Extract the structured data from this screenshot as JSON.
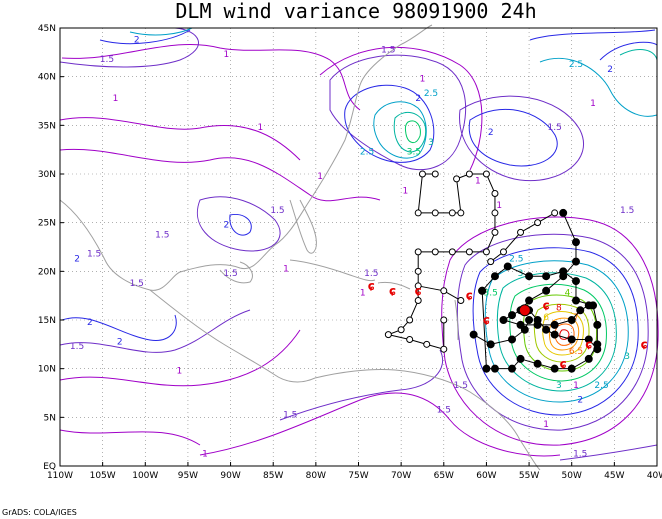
{
  "title": "DLM wind variance 98091900 24h",
  "credit": "GrADS: COLA/IGES",
  "map": {
    "lon_range": [
      -110,
      -40
    ],
    "lat_range": [
      0,
      45
    ],
    "x_ticks": [
      "110W",
      "105W",
      "100W",
      "95W",
      "90W",
      "85W",
      "80W",
      "75W",
      "70W",
      "65W",
      "60W",
      "55W",
      "50W",
      "45W",
      "40W"
    ],
    "y_ticks": [
      "EQ",
      "5N",
      "10N",
      "15N",
      "20N",
      "25N",
      "30N",
      "35N",
      "40N",
      "45N"
    ],
    "gridlines": "dotted",
    "colors": {
      "c1": "#a000c8",
      "c15": "#6e2ec8",
      "c2": "#2828e6",
      "c25": "#00a0c8",
      "c3": "#00b4a0",
      "c35": "#00c864",
      "c4": "#64c800",
      "c6": "#e6c800",
      "c7": "#ff6400",
      "c8": "#e60000",
      "coast": "#a0a0a0",
      "track": "#000000",
      "storm": "#e60000"
    }
  },
  "contour_labels": [
    {
      "text": "2",
      "lon": -101,
      "lat": 43.5,
      "color": "c2"
    },
    {
      "text": "1.5",
      "lon": -104.5,
      "lat": 41.5,
      "color": "c15"
    },
    {
      "text": "1",
      "lon": -90.5,
      "lat": 42,
      "color": "c1"
    },
    {
      "text": "1",
      "lon": -103.5,
      "lat": 37.5,
      "color": "c1"
    },
    {
      "text": "1",
      "lon": -86.5,
      "lat": 34.5,
      "color": "c1"
    },
    {
      "text": "1.5",
      "lon": -71.5,
      "lat": 42.5,
      "color": "c15"
    },
    {
      "text": "1",
      "lon": -67.5,
      "lat": 39.5,
      "color": "c1"
    },
    {
      "text": "2.5",
      "lon": -66.5,
      "lat": 38,
      "color": "c25"
    },
    {
      "text": "2",
      "lon": -68,
      "lat": 37.5,
      "color": "c2"
    },
    {
      "text": "2.5",
      "lon": -74,
      "lat": 32,
      "color": "c25"
    },
    {
      "text": "3.5",
      "lon": -68.5,
      "lat": 32,
      "color": "c35"
    },
    {
      "text": "3",
      "lon": -66.5,
      "lat": 33,
      "color": "c3"
    },
    {
      "text": "2",
      "lon": -59.5,
      "lat": 34,
      "color": "c2"
    },
    {
      "text": "1.5",
      "lon": -52,
      "lat": 34.5,
      "color": "c15"
    },
    {
      "text": "1",
      "lon": -47.5,
      "lat": 37,
      "color": "c1"
    },
    {
      "text": "2.5",
      "lon": -49.5,
      "lat": 41,
      "color": "c25"
    },
    {
      "text": "2",
      "lon": -45.5,
      "lat": 40.5,
      "color": "c2"
    },
    {
      "text": "1",
      "lon": -79.5,
      "lat": 29.5,
      "color": "c1"
    },
    {
      "text": "1",
      "lon": -69.5,
      "lat": 28,
      "color": "c1"
    },
    {
      "text": "1",
      "lon": -61,
      "lat": 29,
      "color": "c1"
    },
    {
      "text": "1",
      "lon": -58.5,
      "lat": 26.5,
      "color": "c1"
    },
    {
      "text": "1.5",
      "lon": -84.5,
      "lat": 26,
      "color": "c15"
    },
    {
      "text": "2",
      "lon": -90.5,
      "lat": 24.5,
      "color": "c2"
    },
    {
      "text": "1.5",
      "lon": -98,
      "lat": 23.5,
      "color": "c15"
    },
    {
      "text": "1.5",
      "lon": -43.5,
      "lat": 26,
      "color": "c15"
    },
    {
      "text": "1.5",
      "lon": -106,
      "lat": 21.5,
      "color": "c15"
    },
    {
      "text": "2",
      "lon": -108,
      "lat": 21,
      "color": "c2"
    },
    {
      "text": "1.5",
      "lon": -101,
      "lat": 18.5,
      "color": "c15"
    },
    {
      "text": "1.5",
      "lon": -90,
      "lat": 19.5,
      "color": "c15"
    },
    {
      "text": "1",
      "lon": -83.5,
      "lat": 20,
      "color": "c1"
    },
    {
      "text": "1.5",
      "lon": -73.5,
      "lat": 19.5,
      "color": "c15"
    },
    {
      "text": "1",
      "lon": -74.5,
      "lat": 17.5,
      "color": "c1"
    },
    {
      "text": "2",
      "lon": -106.5,
      "lat": 14.5,
      "color": "c2"
    },
    {
      "text": "2",
      "lon": -103,
      "lat": 12.5,
      "color": "c2"
    },
    {
      "text": "1.5",
      "lon": -108,
      "lat": 12,
      "color": "c15"
    },
    {
      "text": "1",
      "lon": -96,
      "lat": 9.5,
      "color": "c1"
    },
    {
      "text": "2.5",
      "lon": -56.5,
      "lat": 21,
      "color": "c25"
    },
    {
      "text": "3",
      "lon": -56,
      "lat": 19.5,
      "color": "c3"
    },
    {
      "text": "3.5",
      "lon": -59.5,
      "lat": 17.5,
      "color": "c35"
    },
    {
      "text": "4",
      "lon": -50.5,
      "lat": 17.5,
      "color": "c4"
    },
    {
      "text": "6",
      "lon": -53,
      "lat": 15,
      "color": "c6"
    },
    {
      "text": "8",
      "lon": -51.5,
      "lat": 16,
      "color": "c8"
    },
    {
      "text": "7",
      "lon": -49.5,
      "lat": 15,
      "color": "c7"
    },
    {
      "text": "6.5",
      "lon": -49.5,
      "lat": 11.5,
      "color": "c7"
    },
    {
      "text": "3",
      "lon": -43.5,
      "lat": 11,
      "color": "c3"
    },
    {
      "text": "2.5",
      "lon": -46.5,
      "lat": 8,
      "color": "c25"
    },
    {
      "text": "3",
      "lon": -51.5,
      "lat": 8,
      "color": "c3"
    },
    {
      "text": "1",
      "lon": -49.5,
      "lat": 8,
      "color": "c1"
    },
    {
      "text": "2",
      "lon": -49,
      "lat": 6.5,
      "color": "c2"
    },
    {
      "text": "1.5",
      "lon": -63,
      "lat": 8,
      "color": "c15"
    },
    {
      "text": "1.5",
      "lon": -65,
      "lat": 5.5,
      "color": "c15"
    },
    {
      "text": "1",
      "lon": -53,
      "lat": 4,
      "color": "c1"
    },
    {
      "text": "1.5",
      "lon": -83,
      "lat": 5,
      "color": "c15"
    },
    {
      "text": "1",
      "lon": -93,
      "lat": 1,
      "color": "c1"
    },
    {
      "text": "1.5",
      "lon": -49,
      "lat": 1,
      "color": "c15"
    }
  ],
  "storm_markers": [
    {
      "lon": -73.5,
      "lat": 18.5
    },
    {
      "lon": -71,
      "lat": 18
    },
    {
      "lon": -68,
      "lat": 18
    },
    {
      "lon": -62,
      "lat": 17.5
    },
    {
      "lon": -60,
      "lat": 15
    },
    {
      "lon": -53,
      "lat": 16.5
    },
    {
      "lon": -48,
      "lat": 12.5
    },
    {
      "lon": -51,
      "lat": 10.5
    },
    {
      "lon": -41.5,
      "lat": 12.5
    }
  ],
  "tracks": [
    {
      "style": "open",
      "points": [
        [
          -66,
          30
        ],
        [
          -67.5,
          30
        ],
        [
          -68,
          26
        ],
        [
          -66,
          26
        ],
        [
          -64,
          26
        ],
        [
          -63,
          26
        ],
        [
          -63.5,
          29.5
        ],
        [
          -62,
          30
        ],
        [
          -60,
          30
        ],
        [
          -59,
          28
        ],
        [
          -59,
          26
        ],
        [
          -59,
          24
        ],
        [
          -60,
          22
        ],
        [
          -62,
          22
        ],
        [
          -64,
          22
        ],
        [
          -66,
          22
        ],
        [
          -68,
          22
        ],
        [
          -68,
          20
        ],
        [
          -68,
          17
        ],
        [
          -69,
          15
        ],
        [
          -70,
          14
        ],
        [
          -71.5,
          13.5
        ],
        [
          -69,
          13
        ],
        [
          -67,
          12.5
        ],
        [
          -65,
          12
        ],
        [
          -65,
          15
        ]
      ]
    },
    {
      "style": "open",
      "points": [
        [
          -52,
          26
        ],
        [
          -54,
          25
        ],
        [
          -56,
          24
        ],
        [
          -58,
          22
        ],
        [
          -59.5,
          21
        ]
      ]
    },
    {
      "style": "open",
      "points": [
        [
          -63,
          17
        ],
        [
          -65,
          18
        ],
        [
          -68,
          18.5
        ]
      ]
    },
    {
      "style": "filled",
      "points": [
        [
          -60.5,
          18
        ],
        [
          -59,
          19.5
        ],
        [
          -57.5,
          20.5
        ],
        [
          -55,
          19.5
        ],
        [
          -53,
          19.5
        ],
        [
          -51,
          20
        ],
        [
          -49.5,
          19
        ],
        [
          -49.5,
          17
        ],
        [
          -47.5,
          16.5
        ],
        [
          -47,
          14.5
        ],
        [
          -47,
          12.5
        ],
        [
          -48,
          11
        ],
        [
          -50,
          10
        ],
        [
          -52,
          10
        ],
        [
          -54,
          10.5
        ],
        [
          -56,
          11
        ],
        [
          -57,
          10
        ],
        [
          -59,
          10
        ],
        [
          -60,
          10
        ],
        [
          -60.5,
          18
        ]
      ]
    },
    {
      "style": "filled",
      "points": [
        [
          -51,
          26
        ],
        [
          -49.5,
          23
        ],
        [
          -49.5,
          21
        ],
        [
          -51,
          19.5
        ],
        [
          -53,
          18
        ],
        [
          -55,
          17
        ],
        [
          -56,
          16
        ],
        [
          -57,
          15.5
        ],
        [
          -58,
          15
        ],
        [
          -56,
          14.5
        ],
        [
          -54,
          14.5
        ],
        [
          -52,
          14.5
        ],
        [
          -50,
          15
        ],
        [
          -49,
          16
        ],
        [
          -48,
          16.5
        ]
      ]
    },
    {
      "style": "filled",
      "points": [
        [
          -55,
          16
        ],
        [
          -54,
          15
        ],
        [
          -53,
          14
        ],
        [
          -52,
          13.5
        ],
        [
          -50,
          13
        ],
        [
          -48,
          13
        ],
        [
          -47,
          12
        ]
      ]
    },
    {
      "style": "filled",
      "points": [
        [
          -61.5,
          13.5
        ],
        [
          -59.5,
          12.5
        ],
        [
          -57,
          13
        ],
        [
          -55.5,
          14
        ],
        [
          -55,
          15
        ]
      ]
    }
  ],
  "storm_center": {
    "lon": -55.5,
    "lat": 16
  }
}
